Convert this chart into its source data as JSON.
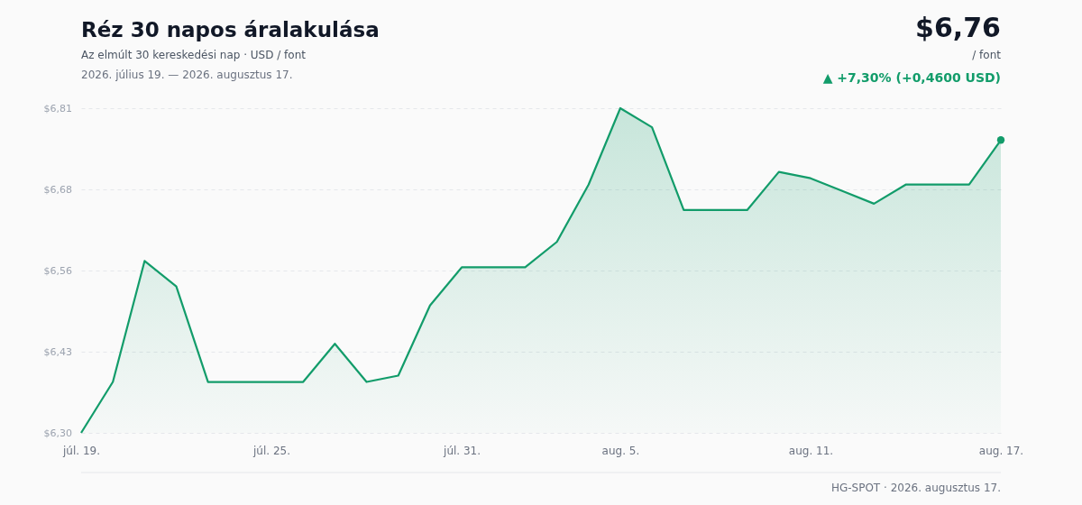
{
  "chart_data": {
    "type": "area",
    "title": "Réz 30 napos áralakulása",
    "subtitle": "Az elmúlt 30 kereskedési nap · USD / font",
    "x": [
      "2026-07-19",
      "2026-07-20",
      "2026-07-21",
      "2026-07-22",
      "2026-07-23",
      "2026-07-24",
      "2026-07-25",
      "2026-07-26",
      "2026-07-27",
      "2026-07-28",
      "2026-07-29",
      "2026-07-30",
      "2026-07-31",
      "2026-08-01",
      "2026-08-02",
      "2026-08-03",
      "2026-08-04",
      "2026-08-05",
      "2026-08-06",
      "2026-08-07",
      "2026-08-08",
      "2026-08-09",
      "2026-08-10",
      "2026-08-11",
      "2026-08-12",
      "2026-08-13",
      "2026-08-14",
      "2026-08-15",
      "2026-08-16",
      "2026-08-17"
    ],
    "series": [
      {
        "color": "#129c6a",
        "values": [
          6.3,
          6.38,
          6.57,
          6.53,
          6.38,
          6.38,
          6.38,
          6.38,
          6.44,
          6.38,
          6.39,
          6.5,
          6.56,
          6.56,
          6.56,
          6.6,
          6.69,
          6.81,
          6.78,
          6.65,
          6.65,
          6.65,
          6.71,
          6.7,
          6.68,
          6.66,
          6.69,
          6.69,
          6.69,
          6.76
        ]
      }
    ],
    "ylim": [
      6.3,
      6.81
    ],
    "yticks": [
      {
        "value": 6.3,
        "label": "$6,30"
      },
      {
        "value": 6.4275,
        "label": "$6,43"
      },
      {
        "value": 6.555,
        "label": "$6,56"
      },
      {
        "value": 6.6825,
        "label": "$6,68"
      },
      {
        "value": 6.81,
        "label": "$6,81"
      }
    ],
    "xlim": [
      "2026-07-19",
      "2026-08-17"
    ],
    "xticks": [
      {
        "value": "2026-07-19",
        "label": "júl. 19."
      },
      {
        "value": "2026-07-25",
        "label": "júl. 25."
      },
      {
        "value": "2026-07-31",
        "label": "júl. 31."
      },
      {
        "value": "2026-08-05",
        "label": "aug. 5."
      },
      {
        "value": "2026-08-11",
        "label": "aug. 11."
      },
      {
        "value": "2026-08-17",
        "label": "aug. 17."
      }
    ],
    "grid": "y",
    "line_style": "solid",
    "annotations": [
      "2026. július 19. — 2026. augusztus 17.",
      "$6,76",
      "/ font",
      "▲ +7,30% (+0,4600 USD)",
      "HG-SPOT · 2026. augusztus 17."
    ]
  }
}
